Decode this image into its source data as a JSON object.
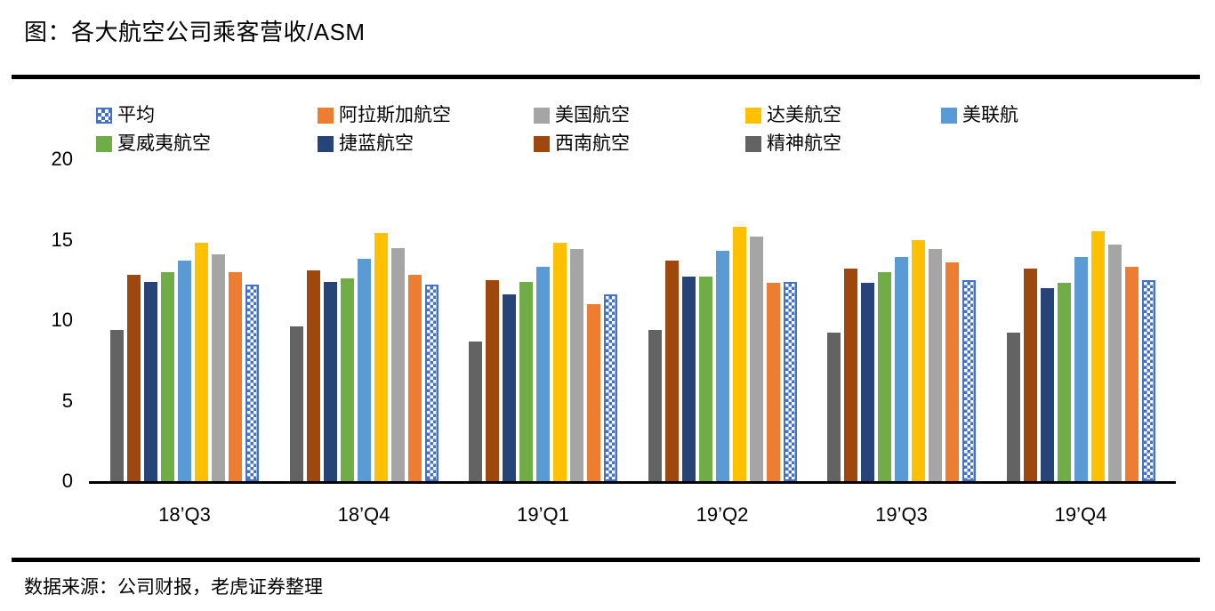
{
  "header": {
    "title": "图：各大航空公司乘客营收/ASM"
  },
  "footer": {
    "source": "数据来源：公司财报，老虎证券整理"
  },
  "chart_data": {
    "type": "bar",
    "title": "各大航空公司乘客营收/ASM",
    "categories": [
      "18’Q3",
      "18’Q4",
      "19’Q1",
      "19’Q2",
      "19’Q3",
      "19’Q4"
    ],
    "series": [
      {
        "name": "平均",
        "color": "#4472C4",
        "pattern": "checker",
        "values": [
          12.2,
          12.2,
          11.6,
          12.4,
          12.5,
          12.5
        ]
      },
      {
        "name": "阿拉斯加航空",
        "color": "#ED7D31",
        "values": [
          13.0,
          12.8,
          11.0,
          12.3,
          13.6,
          13.3
        ]
      },
      {
        "name": "美国航空",
        "color": "#A5A5A5",
        "values": [
          14.1,
          14.5,
          14.4,
          15.2,
          14.4,
          14.7
        ]
      },
      {
        "name": "达美航空",
        "color": "#FFC000",
        "values": [
          14.8,
          15.4,
          14.8,
          15.8,
          15.0,
          15.5
        ]
      },
      {
        "name": "美联航",
        "color": "#5B9BD5",
        "values": [
          13.7,
          13.8,
          13.3,
          14.3,
          13.9,
          13.9
        ]
      },
      {
        "name": "夏威夷航空",
        "color": "#70AD47",
        "values": [
          13.0,
          12.6,
          12.4,
          12.7,
          13.0,
          12.3
        ]
      },
      {
        "name": "捷蓝航空",
        "color": "#264478",
        "values": [
          12.4,
          12.4,
          11.6,
          12.7,
          12.3,
          12.0
        ]
      },
      {
        "name": "西南航空",
        "color": "#9E480E",
        "values": [
          12.8,
          13.1,
          12.5,
          13.7,
          13.2,
          13.2
        ]
      },
      {
        "name": "精神航空",
        "color": "#636363",
        "values": [
          9.4,
          9.6,
          8.7,
          9.4,
          9.2,
          9.2
        ]
      }
    ],
    "plot_order": [
      "精神航空",
      "西南航空",
      "捷蓝航空",
      "夏威夷航空",
      "美联航",
      "达美航空",
      "美国航空",
      "阿拉斯加航空",
      "平均"
    ],
    "legend_rows": [
      [
        "平均",
        "阿拉斯加航空",
        "美国航空",
        "达美航空",
        "美联航"
      ],
      [
        "夏威夷航空",
        "捷蓝航空",
        "西南航空",
        "精神航空"
      ]
    ],
    "legend_position": "top",
    "grid": false,
    "xlabel": "",
    "ylabel": "",
    "ylim": [
      0,
      20
    ],
    "yticks": [
      0,
      5,
      10,
      15,
      20
    ],
    "axis_color": "#000000",
    "pattern_color": "#4472C4"
  }
}
